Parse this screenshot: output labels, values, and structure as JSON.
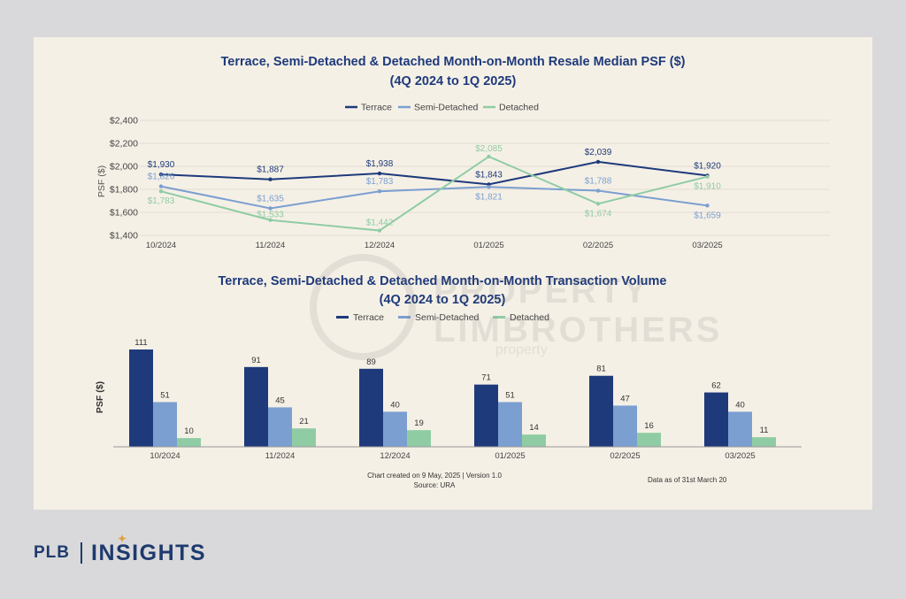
{
  "chart_data": [
    {
      "type": "line",
      "title": "Terrace, Semi-Detached & Detached Month-on-Month Resale Median PSF ($)",
      "subtitle": "(4Q 2024 to 1Q 2025)",
      "xlabel": "",
      "ylabel": "PSF ($)",
      "categories": [
        "10/2024",
        "11/2024",
        "12/2024",
        "01/2025",
        "02/2025",
        "03/2025"
      ],
      "ylim": [
        1400,
        2400
      ],
      "yticks": [
        1400,
        1600,
        1800,
        2000,
        2200,
        2400
      ],
      "ytick_labels": [
        "$1,400",
        "$1,600",
        "$1,800",
        "$2,000",
        "$2,200",
        "$2,400"
      ],
      "grid": true,
      "legend": "top-center",
      "series": [
        {
          "name": "Terrace",
          "color": "#1e3a7b",
          "values": [
            1930,
            1887,
            1938,
            1843,
            2039,
            1920
          ],
          "labels": [
            "$1,930",
            "$1,887",
            "$1,938",
            "$1,843",
            "$2,039",
            "$1,920"
          ]
        },
        {
          "name": "Semi-Detached",
          "color": "#7b9fd1",
          "values": [
            1826,
            1635,
            1783,
            1821,
            1788,
            1659
          ],
          "labels": [
            "$1,826",
            "$1,635",
            "$1,783",
            "$1,821",
            "$1,788",
            "$1,659"
          ]
        },
        {
          "name": "Detached",
          "color": "#8fcca3",
          "values": [
            1783,
            1533,
            1442,
            2085,
            1674,
            1910
          ],
          "labels": [
            "$1,783",
            "$1,533",
            "$1,442",
            "$2,085",
            "$1,674",
            "$1,910"
          ]
        }
      ]
    },
    {
      "type": "bar",
      "title": "Terrace, Semi-Detached & Detached Month-on-Month Transaction Volume",
      "subtitle": "(4Q 2024 to 1Q 2025)",
      "xlabel": "",
      "ylabel": "PSF ($)",
      "categories": [
        "10/2024",
        "11/2024",
        "12/2024",
        "01/2025",
        "02/2025",
        "03/2025"
      ],
      "ylim": [
        0,
        115
      ],
      "grid": false,
      "legend": "top-center",
      "series": [
        {
          "name": "Terrace",
          "color": "#1e3a7b",
          "values": [
            111,
            91,
            89,
            71,
            81,
            62
          ]
        },
        {
          "name": "Semi-Detached",
          "color": "#7b9fd1",
          "values": [
            51,
            45,
            40,
            51,
            47,
            40
          ]
        },
        {
          "name": "Detached",
          "color": "#8fcca3",
          "values": [
            10,
            21,
            19,
            14,
            16,
            11
          ]
        }
      ]
    }
  ],
  "notes": {
    "created": "Chart created on 9 May, 2025 | Version 1.0",
    "source": "Source: URA",
    "data_as_of": "Data as of 31st March 20"
  },
  "watermark": {
    "text1": "PROPERTY",
    "text2": "LIMBROTHERS",
    "sub": "property"
  },
  "brand": {
    "left": "PLB",
    "right": "INSIGHTS"
  }
}
